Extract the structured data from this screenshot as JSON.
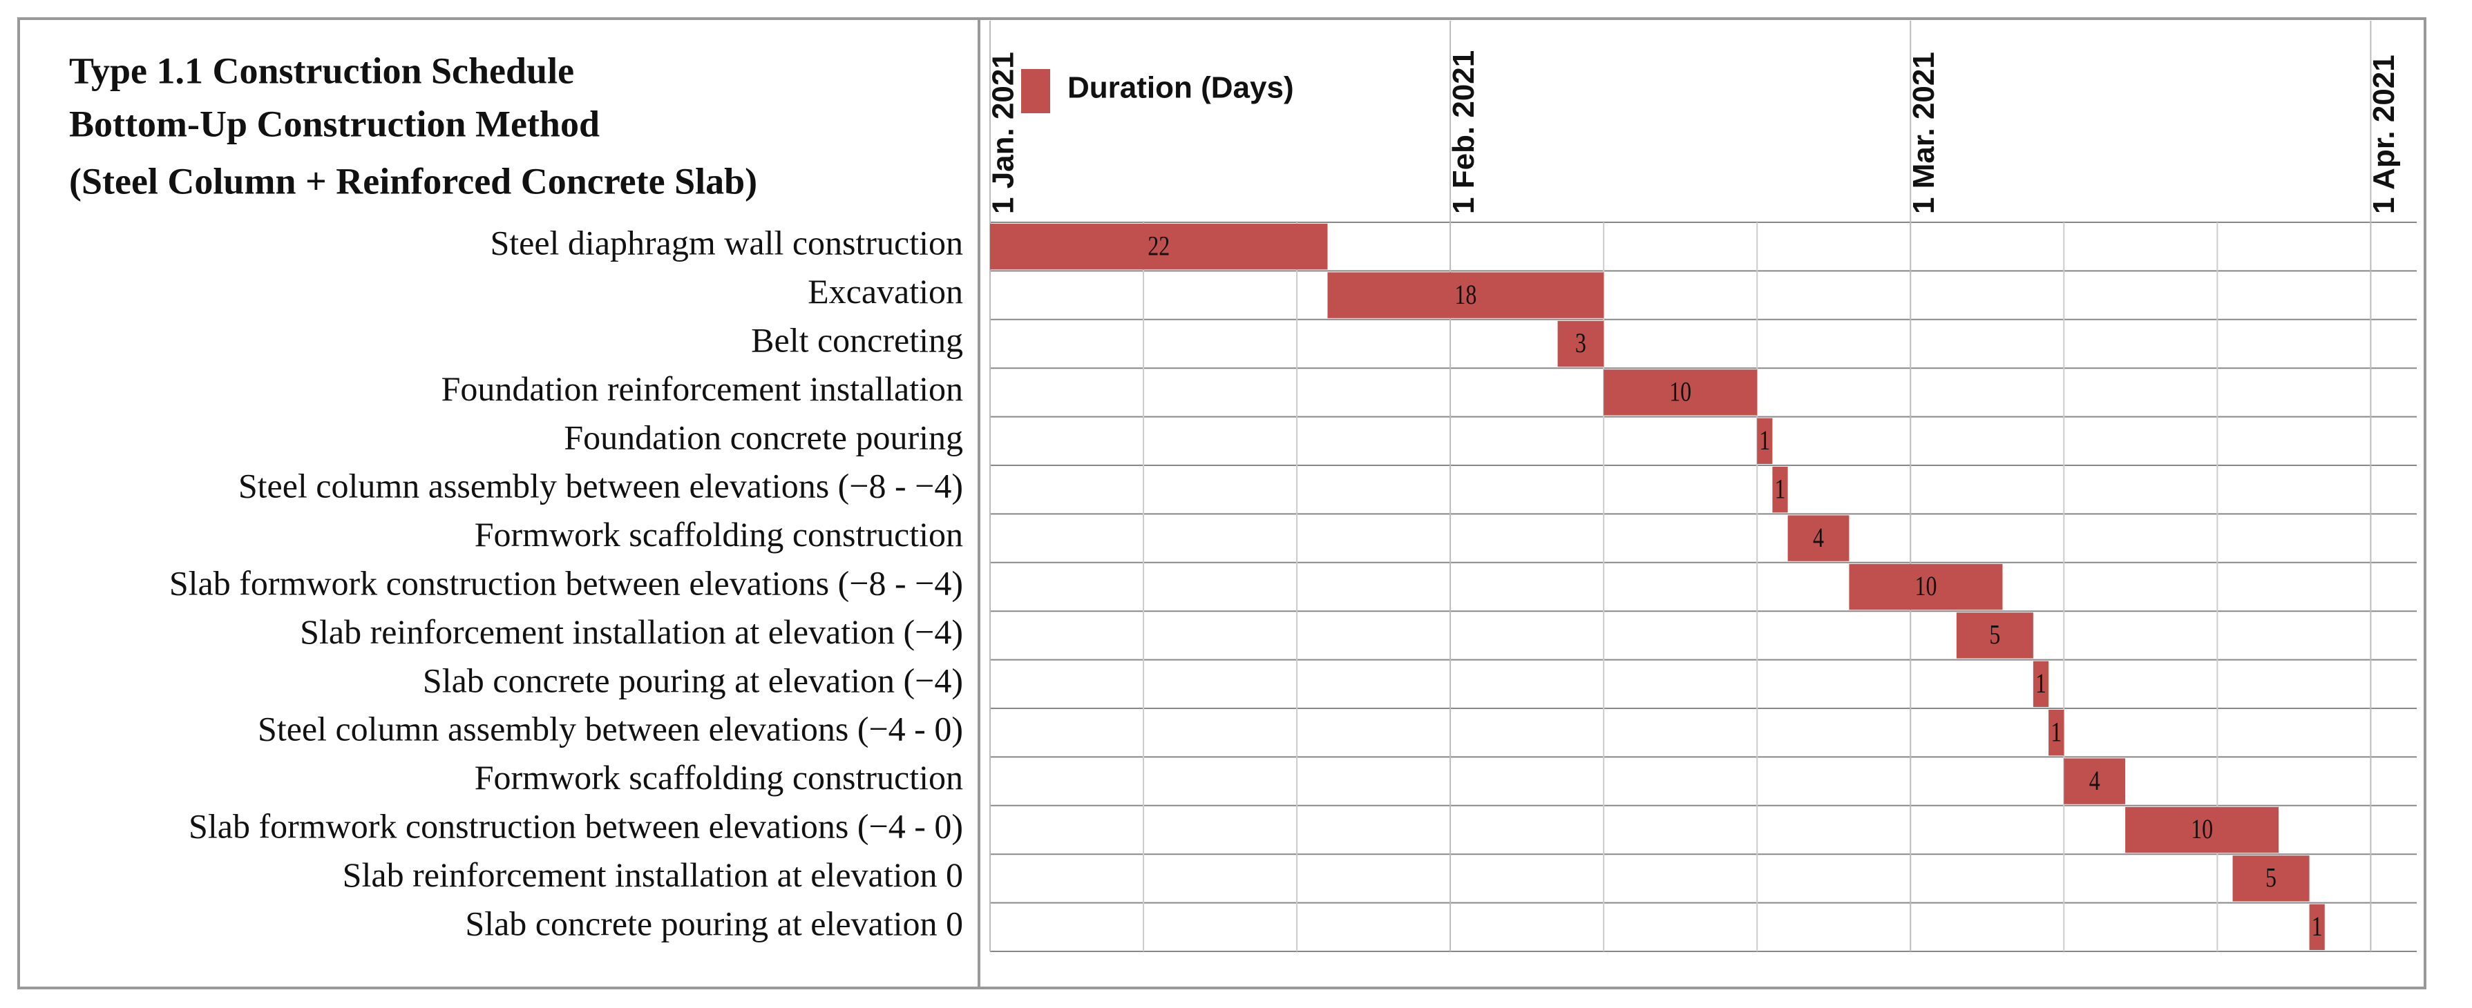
{
  "chart_data": {
    "type": "gantt",
    "title": [
      "Type 1.1 Construction Schedule",
      "Bottom-Up Construction Method",
      "(Steel Column + Reinforced Concrete Slab)"
    ],
    "categories": [
      "Steel diaphragm wall construction",
      "Excavation",
      "Belt concreting",
      "Foundation reinforcement installation",
      "Foundation concrete pouring",
      "Steel column assembly between elevations (−8 - −4)",
      "Formwork scaffolding construction",
      "Slab formwork construction between elevations (−8 - −4)",
      "Slab reinforcement installation at elevation (−4)",
      "Slab concrete pouring at elevation (−4)",
      "Steel column assembly between elevations (−4 - 0)",
      "Formwork scaffolding construction",
      "Slab formwork construction between elevations (−4 - 0)",
      "Slab reinforcement installation at elevation 0",
      "Slab concrete pouring at elevation 0"
    ],
    "start": [
      0,
      22,
      37,
      40,
      50,
      51,
      52,
      56,
      63,
      68,
      69,
      70,
      74,
      81,
      86
    ],
    "series": [
      {
        "name": "Duration (Days)",
        "color": "#c0504d",
        "values": [
          22,
          18,
          3,
          10,
          1,
          1,
          4,
          10,
          5,
          1,
          1,
          4,
          10,
          5,
          1
        ]
      }
    ],
    "xlim": [
      0,
      93
    ],
    "xticks": [
      {
        "value": 0,
        "label": "1 Jan. 2021"
      },
      {
        "value": 30,
        "label": "1 Feb. 2021"
      },
      {
        "value": 60,
        "label": "1 Mar. 2021"
      },
      {
        "value": 90,
        "label": "1 Apr. 2021"
      }
    ],
    "x_minor_ticks": [
      10,
      20,
      40,
      50,
      70,
      80
    ],
    "grid": true,
    "legend": "top-left"
  }
}
